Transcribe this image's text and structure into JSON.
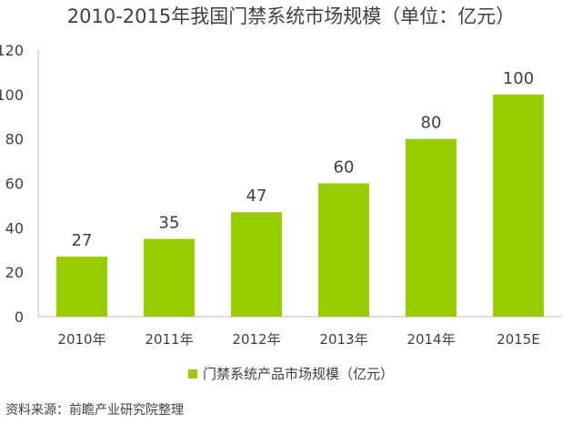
{
  "chart_data": {
    "type": "bar",
    "title": "2010-2015年我国门禁系统市场规模（单位：亿元）",
    "categories": [
      "2010年",
      "2011年",
      "2012年",
      "2013年",
      "2014年",
      "2015E"
    ],
    "series": [
      {
        "name": "门禁系统产品市场规模（亿元）",
        "values": [
          27,
          35,
          47,
          60,
          80,
          100
        ]
      }
    ],
    "data_labels": [
      "27",
      "35",
      "47",
      "60",
      "80",
      "100"
    ],
    "ylim": [
      0,
      120
    ],
    "yticks": [
      0,
      20,
      40,
      60,
      80,
      100,
      120
    ],
    "ytick_labels": [
      "0",
      "20",
      "40",
      "60",
      "80",
      "100",
      "120"
    ],
    "grid": false,
    "legend_position": "bottom",
    "bar_color": "#99cc00"
  },
  "source_text": "资料来源：前瞻产业研究院整理"
}
